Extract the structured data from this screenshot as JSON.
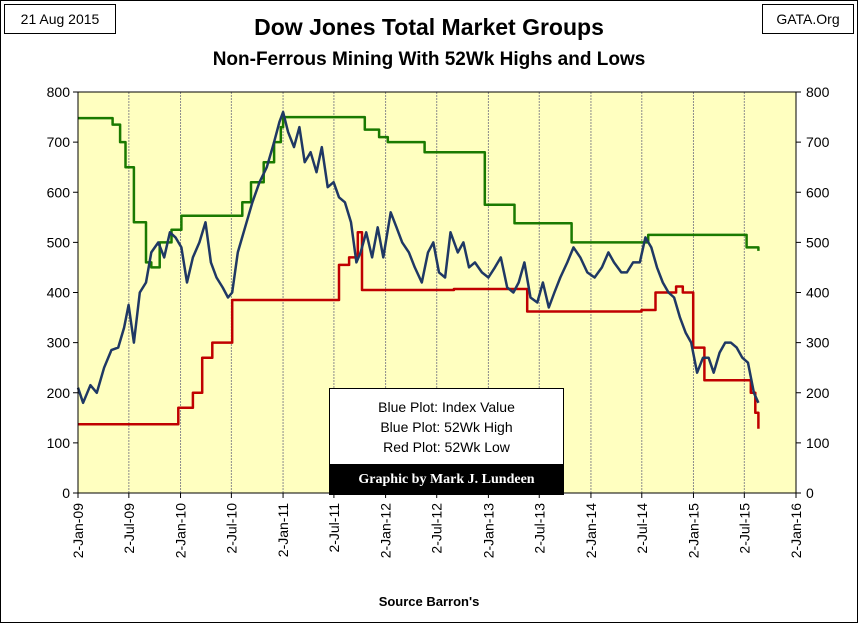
{
  "header": {
    "date": "21 Aug 2015",
    "source": "GATA.Org"
  },
  "footer": {
    "source_note": "Source Barron's"
  },
  "legend": {
    "lines": [
      "Blue Plot: Index Value",
      "Blue Plot: 52Wk High",
      "Red Plot:  52Wk Low"
    ],
    "credit": "Graphic by Mark J. Lundeen"
  },
  "colors": {
    "plot_background": "#ffffc0",
    "index_line": "#1f3864",
    "high_line": "#1a7a00",
    "low_line": "#c00000",
    "gridline": "#8c8c8c"
  },
  "chart_data": {
    "type": "line",
    "title": "Dow Jones Total Market Groups",
    "subtitle": "Non-Ferrous Mining With 52Wk Highs and Lows",
    "xlabel": "",
    "ylabel": "",
    "ylim": [
      0,
      800
    ],
    "y_ticks": [
      0,
      100,
      200,
      300,
      400,
      500,
      600,
      700,
      800
    ],
    "y_axis_right": true,
    "grid": "vertical",
    "x_ticks": [
      "2-Jan-09",
      "2-Jul-09",
      "2-Jan-10",
      "2-Jul-10",
      "2-Jan-11",
      "2-Jul-11",
      "2-Jan-12",
      "2-Jul-12",
      "2-Jan-13",
      "2-Jul-13",
      "2-Jan-14",
      "2-Jul-14",
      "2-Jan-15",
      "2-Jul-15",
      "2-Jan-16"
    ],
    "x_domain": [
      "2009-01-02",
      "2016-01-02"
    ],
    "series": [
      {
        "name": "Index Value",
        "color": "#1f3864",
        "x": [
          "2009-01-02",
          "2009-01-20",
          "2009-02-15",
          "2009-03-10",
          "2009-04-05",
          "2009-05-01",
          "2009-05-25",
          "2009-06-15",
          "2009-07-01",
          "2009-07-20",
          "2009-08-10",
          "2009-09-01",
          "2009-09-20",
          "2009-10-15",
          "2009-11-05",
          "2009-11-25",
          "2009-12-15",
          "2010-01-05",
          "2010-01-25",
          "2010-02-15",
          "2010-03-10",
          "2010-04-01",
          "2010-04-20",
          "2010-05-10",
          "2010-06-01",
          "2010-06-20",
          "2010-07-05",
          "2010-07-25",
          "2010-08-20",
          "2010-09-15",
          "2010-10-10",
          "2010-11-05",
          "2010-12-01",
          "2010-12-20",
          "2011-01-02",
          "2011-01-20",
          "2011-02-10",
          "2011-03-01",
          "2011-03-20",
          "2011-04-10",
          "2011-05-01",
          "2011-05-20",
          "2011-06-10",
          "2011-07-01",
          "2011-07-20",
          "2011-08-10",
          "2011-09-01",
          "2011-09-20",
          "2011-10-05",
          "2011-10-25",
          "2011-11-15",
          "2011-12-05",
          "2011-12-25",
          "2012-01-20",
          "2012-02-10",
          "2012-03-01",
          "2012-03-25",
          "2012-04-15",
          "2012-05-10",
          "2012-06-01",
          "2012-06-20",
          "2012-07-10",
          "2012-08-01",
          "2012-08-20",
          "2012-09-15",
          "2012-10-05",
          "2012-10-25",
          "2012-11-15",
          "2012-12-10",
          "2013-01-02",
          "2013-01-25",
          "2013-02-15",
          "2013-03-10",
          "2013-04-01",
          "2013-04-20",
          "2013-05-10",
          "2013-06-01",
          "2013-06-25",
          "2013-07-15",
          "2013-08-05",
          "2013-08-25",
          "2013-09-15",
          "2013-10-10",
          "2013-11-01",
          "2013-11-25",
          "2013-12-20",
          "2014-01-15",
          "2014-02-10",
          "2014-03-05",
          "2014-03-25",
          "2014-04-20",
          "2014-05-10",
          "2014-06-01",
          "2014-06-25",
          "2014-07-15",
          "2014-08-05",
          "2014-08-25",
          "2014-09-15",
          "2014-10-05",
          "2014-10-25",
          "2014-11-15",
          "2014-12-05",
          "2014-12-25",
          "2015-01-15",
          "2015-02-05",
          "2015-02-25",
          "2015-03-15",
          "2015-04-05",
          "2015-04-25",
          "2015-05-15",
          "2015-06-05",
          "2015-06-25",
          "2015-07-15",
          "2015-08-05",
          "2015-08-21"
        ],
        "values": [
          210,
          180,
          215,
          200,
          250,
          285,
          290,
          330,
          375,
          300,
          400,
          420,
          480,
          500,
          470,
          520,
          510,
          490,
          420,
          470,
          500,
          540,
          460,
          430,
          410,
          390,
          400,
          480,
          530,
          580,
          620,
          650,
          700,
          740,
          760,
          720,
          690,
          730,
          660,
          680,
          640,
          690,
          610,
          620,
          590,
          580,
          540,
          460,
          480,
          520,
          470,
          530,
          470,
          560,
          530,
          500,
          480,
          450,
          420,
          480,
          500,
          440,
          430,
          520,
          480,
          500,
          450,
          460,
          440,
          430,
          450,
          470,
          410,
          400,
          420,
          460,
          390,
          380,
          420,
          370,
          400,
          430,
          460,
          490,
          470,
          440,
          430,
          450,
          480,
          460,
          440,
          440,
          460,
          460,
          510,
          490,
          450,
          420,
          400,
          390,
          350,
          320,
          300,
          240,
          270,
          270,
          240,
          280,
          300,
          300,
          290,
          270,
          260,
          200,
          180
        ]
      },
      {
        "name": "52Wk High",
        "color": "#1a7a00",
        "x": [
          "2009-01-02",
          "2009-04-15",
          "2009-05-05",
          "2009-06-01",
          "2009-06-20",
          "2009-07-20",
          "2009-09-01",
          "2009-09-20",
          "2009-10-20",
          "2009-12-01",
          "2010-01-05",
          "2010-07-01",
          "2010-08-10",
          "2010-09-10",
          "2010-10-25",
          "2010-12-01",
          "2010-12-25",
          "2011-01-02",
          "2011-09-20",
          "2011-10-20",
          "2011-12-10",
          "2012-01-10",
          "2012-05-20",
          "2012-12-20",
          "2013-04-05",
          "2013-10-25",
          "2014-07-25",
          "2015-06-25",
          "2015-07-10",
          "2015-08-21"
        ],
        "values": [
          748,
          748,
          735,
          700,
          650,
          540,
          460,
          450,
          500,
          525,
          553,
          553,
          580,
          620,
          660,
          700,
          730,
          750,
          750,
          725,
          710,
          700,
          680,
          575,
          538,
          500,
          515,
          515,
          490,
          483
        ]
      },
      {
        "name": "52Wk Low",
        "color": "#c00000",
        "x": [
          "2009-01-02",
          "2009-12-10",
          "2009-12-25",
          "2010-02-15",
          "2010-03-20",
          "2010-04-25",
          "2010-06-20",
          "2010-07-05",
          "2011-06-01",
          "2011-07-20",
          "2011-08-25",
          "2011-09-25",
          "2011-10-10",
          "2012-06-01",
          "2012-09-01",
          "2013-05-01",
          "2013-05-20",
          "2014-05-10",
          "2014-07-01",
          "2014-08-20",
          "2014-11-01",
          "2014-11-25",
          "2015-01-01",
          "2015-02-10",
          "2015-07-01",
          "2015-07-25",
          "2015-08-10",
          "2015-08-21"
        ],
        "values": [
          137,
          137,
          170,
          200,
          270,
          300,
          300,
          385,
          385,
          455,
          470,
          520,
          405,
          405,
          407,
          407,
          362,
          362,
          365,
          400,
          412,
          400,
          290,
          225,
          225,
          200,
          160,
          128
        ]
      }
    ]
  }
}
